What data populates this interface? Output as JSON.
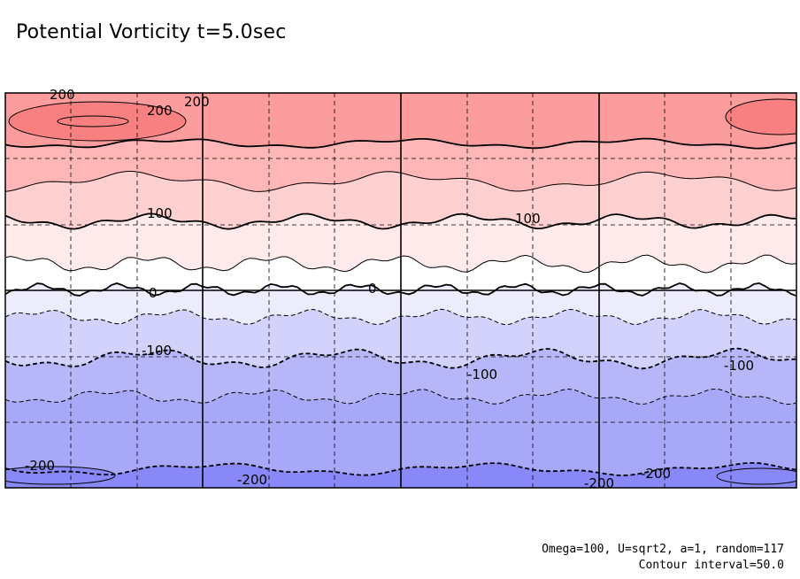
{
  "chart_data": {
    "type": "heatmap",
    "title": "Potential Vorticity t=5.0sec",
    "variable": "Potential Vorticity",
    "time_label": "t=5.0sec",
    "contour_interval": 50.0,
    "levels": [
      -250,
      -200,
      -150,
      -100,
      -50,
      0,
      50,
      100,
      150,
      200,
      250
    ],
    "level_colors": {
      "-250": "#8888f8",
      "-200": "#a8a8f8",
      "-150": "#b6b6f8",
      "-100": "#d2d2fc",
      "-50": "#ececfc",
      "0": "#ffffff",
      "50": "#feeaea",
      "100": "#fed0d0",
      "150": "#feb6b6",
      "200": "#fc9c9c",
      "250": "#f88080"
    },
    "contour_labels": [
      {
        "text": "200",
        "level": 200
      },
      {
        "text": "200",
        "level": 200
      },
      {
        "text": "200",
        "level": 200
      },
      {
        "text": "100",
        "level": 100
      },
      {
        "text": "100",
        "level": 100
      },
      {
        "text": "0",
        "level": 0
      },
      {
        "text": "0",
        "level": 0
      },
      {
        "text": "-100",
        "level": -100
      },
      {
        "text": "-100",
        "level": -100
      },
      {
        "text": "-100",
        "level": -100
      },
      {
        "text": "-200",
        "level": -200
      },
      {
        "text": "-200",
        "level": -200
      },
      {
        "text": "-200",
        "level": -200
      },
      {
        "text": "-200",
        "level": -200
      }
    ],
    "grid": true,
    "xlabel": "",
    "ylabel": ""
  },
  "footnote": {
    "params": "Omega=100, U=sqrt2, a=1, random=117",
    "interval": "Contour interval=50.0"
  }
}
